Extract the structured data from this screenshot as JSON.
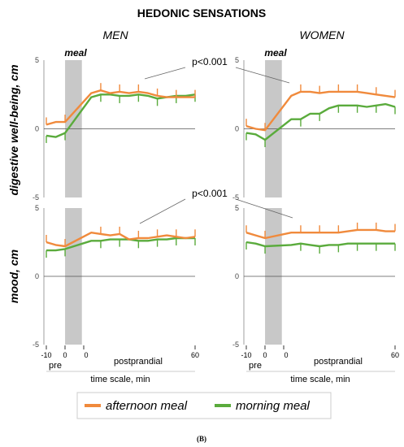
{
  "title": "HEDONIC SENSATIONS",
  "groups": [
    "MEN",
    "WOMEN"
  ],
  "meal_label": "meal",
  "p_values": [
    "p<0.001",
    "p<0.001"
  ],
  "ylabels": [
    "digestive well-being, cm",
    "mood, cm"
  ],
  "x_axis": {
    "ticks": [
      "-10",
      "0",
      "0",
      "60"
    ],
    "pre_label": "pre",
    "post_label": "postprandial",
    "label": "time scale, min"
  },
  "legend": [
    {
      "name": "afternoon meal",
      "color": "#f08a3c"
    },
    {
      "name": "morning meal",
      "color": "#5aab3c"
    }
  ],
  "caption": "(B)",
  "colors": {
    "afternoon": "#f08a3c",
    "morning": "#5aab3c",
    "meal_band": "#c8c8c8",
    "axis": "#888888"
  },
  "chart_data": [
    {
      "type": "line",
      "panel": "digestive well-being, men",
      "ylabel": "digestive well-being, cm",
      "ylim": [
        -5,
        5
      ],
      "yticks": [
        5,
        0,
        -5
      ],
      "series": [
        {
          "name": "afternoon meal",
          "x": [
            -10,
            -5,
            0,
            5,
            10,
            15,
            20,
            25,
            30,
            35,
            40,
            45,
            50,
            55,
            60
          ],
          "y": [
            0.3,
            0.5,
            0.5,
            2.6,
            2.8,
            2.6,
            2.7,
            2.6,
            2.7,
            2.6,
            2.4,
            2.3,
            2.3,
            2.3,
            2.3
          ]
        },
        {
          "name": "morning meal",
          "x": [
            -10,
            -5,
            0,
            5,
            10,
            15,
            20,
            25,
            30,
            35,
            40,
            45,
            50,
            55,
            60
          ],
          "y": [
            -0.5,
            -0.6,
            -0.3,
            2.3,
            2.5,
            2.5,
            2.4,
            2.4,
            2.5,
            2.4,
            2.2,
            2.3,
            2.4,
            2.4,
            2.5
          ]
        }
      ]
    },
    {
      "type": "line",
      "panel": "digestive well-being, women",
      "ylabel": "digestive well-being, cm",
      "ylim": [
        -5,
        5
      ],
      "yticks": [
        5,
        0,
        -5
      ],
      "series": [
        {
          "name": "afternoon meal",
          "x": [
            -10,
            -5,
            0,
            5,
            10,
            15,
            20,
            25,
            30,
            35,
            40,
            45,
            50,
            55,
            60
          ],
          "y": [
            0.2,
            0.0,
            -0.1,
            2.4,
            2.7,
            2.7,
            2.6,
            2.7,
            2.7,
            2.7,
            2.7,
            2.6,
            2.5,
            2.4,
            2.3
          ]
        },
        {
          "name": "morning meal",
          "x": [
            -10,
            -5,
            0,
            5,
            10,
            15,
            20,
            25,
            30,
            35,
            40,
            45,
            50,
            55,
            60
          ],
          "y": [
            -0.3,
            -0.4,
            -0.8,
            0.7,
            0.7,
            1.1,
            1.1,
            1.5,
            1.7,
            1.7,
            1.7,
            1.6,
            1.7,
            1.8,
            1.6
          ]
        }
      ]
    },
    {
      "type": "line",
      "panel": "mood, men",
      "ylabel": "mood, cm",
      "ylim": [
        -5,
        5
      ],
      "yticks": [
        5,
        0,
        -5
      ],
      "series": [
        {
          "name": "afternoon meal",
          "x": [
            -10,
            -5,
            0,
            5,
            10,
            15,
            20,
            25,
            30,
            35,
            40,
            45,
            50,
            55,
            60
          ],
          "y": [
            2.5,
            2.3,
            2.2,
            3.2,
            3.1,
            3.0,
            3.1,
            2.7,
            2.8,
            2.8,
            2.9,
            3.0,
            2.9,
            2.8,
            2.9
          ]
        },
        {
          "name": "morning meal",
          "x": [
            -10,
            -5,
            0,
            5,
            10,
            15,
            20,
            25,
            30,
            35,
            40,
            45,
            50,
            55,
            60
          ],
          "y": [
            1.9,
            1.9,
            2.0,
            2.6,
            2.6,
            2.7,
            2.7,
            2.7,
            2.6,
            2.6,
            2.7,
            2.7,
            2.8,
            2.8,
            2.8
          ]
        }
      ]
    },
    {
      "type": "line",
      "panel": "mood, women",
      "ylabel": "mood, cm",
      "ylim": [
        -5,
        5
      ],
      "yticks": [
        5,
        0,
        -5
      ],
      "series": [
        {
          "name": "afternoon meal",
          "x": [
            -10,
            -5,
            0,
            5,
            10,
            15,
            20,
            25,
            30,
            35,
            40,
            45,
            50,
            55,
            60
          ],
          "y": [
            3.2,
            3.0,
            2.8,
            3.2,
            3.2,
            3.2,
            3.2,
            3.2,
            3.2,
            3.3,
            3.4,
            3.4,
            3.4,
            3.3,
            3.3
          ]
        },
        {
          "name": "morning meal",
          "x": [
            -10,
            -5,
            0,
            5,
            10,
            15,
            20,
            25,
            30,
            35,
            40,
            45,
            50,
            55,
            60
          ],
          "y": [
            2.5,
            2.4,
            2.2,
            2.3,
            2.4,
            2.3,
            2.2,
            2.3,
            2.3,
            2.4,
            2.4,
            2.4,
            2.4,
            2.4,
            2.4
          ]
        }
      ]
    }
  ]
}
